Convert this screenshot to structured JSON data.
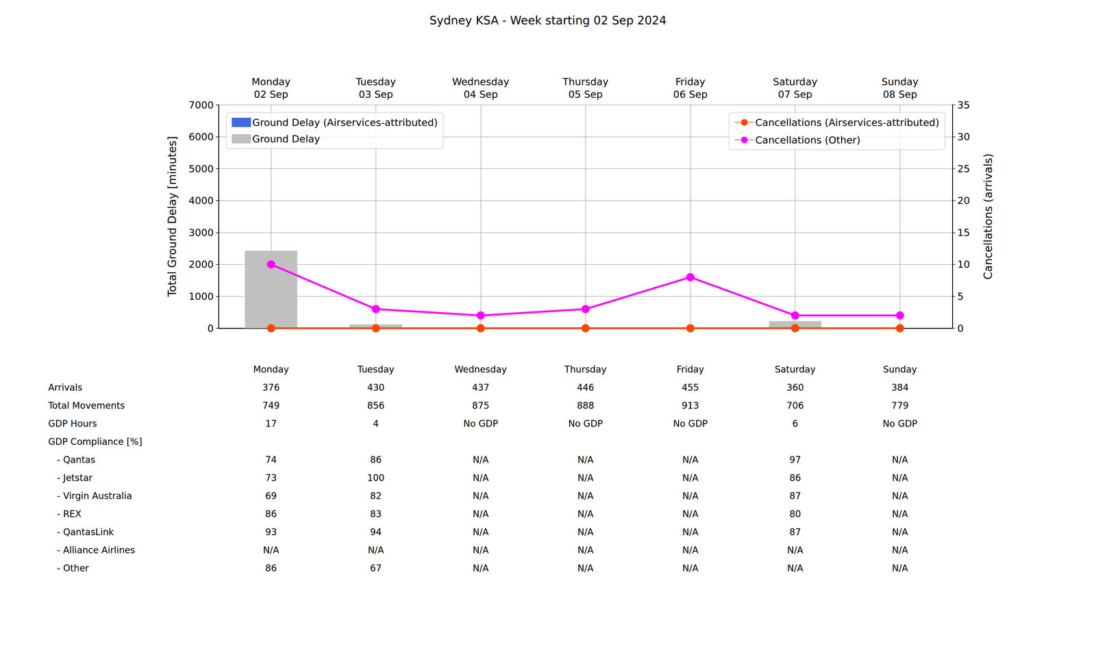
{
  "chart_data": {
    "type": "bar",
    "title": "Sydney KSA - Week starting 02 Sep 2024",
    "categories": [
      "Monday\n02 Sep",
      "Tuesday\n03 Sep",
      "Wednesday\n04 Sep",
      "Thursday\n05 Sep",
      "Friday\n06 Sep",
      "Saturday\n07 Sep",
      "Sunday\n08 Sep"
    ],
    "y_label": "Total Ground Delay [minutes]",
    "y2_label": "Cancellations (arrivals)",
    "ylim": [
      0,
      7000
    ],
    "yticks": [
      0,
      1000,
      2000,
      3000,
      4000,
      5000,
      6000,
      7000
    ],
    "y2lim": [
      0,
      35
    ],
    "y2ticks": [
      0,
      5,
      10,
      15,
      20,
      25,
      30,
      35
    ],
    "grid": true,
    "series": [
      {
        "name": "Ground Delay (Airservices-attributed)",
        "type": "bar",
        "color": "#4169e1",
        "values": [
          0,
          0,
          0,
          0,
          0,
          0,
          0
        ]
      },
      {
        "name": "Ground Delay",
        "type": "bar",
        "color": "#c0c0c0",
        "values": [
          2430,
          120,
          0,
          0,
          0,
          220,
          0
        ]
      },
      {
        "name": "Cancellations (Airservices-attributed)",
        "type": "line",
        "axis": "y2",
        "color": "#ff4500",
        "marker": "circle",
        "values": [
          0,
          0,
          0,
          0,
          0,
          0,
          0
        ]
      },
      {
        "name": "Cancellations (Other)",
        "type": "line",
        "axis": "y2",
        "color": "#ff00ff",
        "marker": "circle",
        "values": [
          10,
          3,
          2,
          3,
          8,
          2,
          2
        ]
      }
    ]
  },
  "table": {
    "columns": [
      "Monday",
      "Tuesday",
      "Wednesday",
      "Thursday",
      "Friday",
      "Saturday",
      "Sunday"
    ],
    "rows": [
      {
        "label": "Arrivals",
        "values": [
          376,
          430,
          437,
          446,
          455,
          360,
          384
        ]
      },
      {
        "label": "Total Movements",
        "values": [
          749,
          856,
          875,
          888,
          913,
          706,
          779
        ]
      },
      {
        "label": "GDP Hours",
        "values": [
          17,
          4,
          "No GDP",
          "No GDP",
          "No GDP",
          6,
          "No GDP"
        ]
      },
      {
        "label": "GDP Compliance [%]"
      },
      {
        "label": "- Qantas",
        "sub": true,
        "values": [
          74,
          86,
          "N/A",
          "N/A",
          "N/A",
          97,
          "N/A"
        ]
      },
      {
        "label": "- Jetstar",
        "sub": true,
        "values": [
          73,
          100,
          "N/A",
          "N/A",
          "N/A",
          86,
          "N/A"
        ]
      },
      {
        "label": "- Virgin Australia",
        "sub": true,
        "values": [
          69,
          82,
          "N/A",
          "N/A",
          "N/A",
          87,
          "N/A"
        ]
      },
      {
        "label": "- REX",
        "sub": true,
        "values": [
          86,
          83,
          "N/A",
          "N/A",
          "N/A",
          80,
          "N/A"
        ]
      },
      {
        "label": "- QantasLink",
        "sub": true,
        "values": [
          93,
          94,
          "N/A",
          "N/A",
          "N/A",
          87,
          "N/A"
        ]
      },
      {
        "label": "- Alliance Airlines",
        "sub": true,
        "values": [
          "N/A",
          "N/A",
          "N/A",
          "N/A",
          "N/A",
          "N/A",
          "N/A"
        ]
      },
      {
        "label": "- Other",
        "sub": true,
        "values": [
          86,
          67,
          "N/A",
          "N/A",
          "N/A",
          "N/A",
          "N/A"
        ]
      }
    ]
  }
}
